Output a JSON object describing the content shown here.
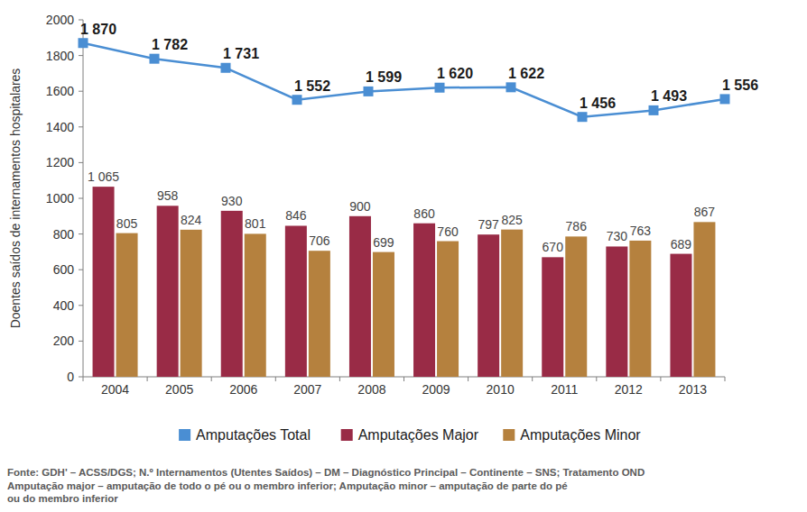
{
  "chart_data": {
    "type": "bar",
    "y_label": "Doentes saídos de internamentos hospitalares",
    "categories": [
      "2004",
      "2005",
      "2006",
      "2007",
      "2008",
      "2009",
      "2010",
      "2011",
      "2012",
      "2013"
    ],
    "series": [
      {
        "name": "Amputações Total",
        "type": "line",
        "marker": "square",
        "color": "#4a8ed3",
        "values": [
          1870,
          1782,
          1731,
          1552,
          1599,
          1620,
          1622,
          1456,
          1493,
          1556
        ],
        "value_labels": [
          "1 870",
          "1 782",
          "1 731",
          "1 552",
          "1 599",
          "1 620",
          "1 622",
          "1 456",
          "1 493",
          "1 556"
        ]
      },
      {
        "name": "Amputações Major",
        "type": "bar",
        "color": "#992b46",
        "values": [
          1065,
          958,
          930,
          846,
          900,
          860,
          797,
          670,
          730,
          689
        ],
        "value_labels": [
          "1 065",
          "958",
          "930",
          "846",
          "900",
          "860",
          "797",
          "670",
          "730",
          "689"
        ]
      },
      {
        "name": "Amputações Minor",
        "type": "bar",
        "color": "#b5813e",
        "values": [
          805,
          824,
          801,
          706,
          699,
          760,
          825,
          786,
          763,
          867
        ]
      }
    ],
    "ylim": [
      0,
      2000
    ],
    "yticks": [
      0,
      200,
      400,
      600,
      800,
      1000,
      1200,
      1400,
      1600,
      1800,
      2000
    ],
    "grid": false,
    "legend": "bottom",
    "data_labels": true,
    "annotations": [
      "Fonte: GDH' – ACSS/DGS; N.º Internamentos (Utentes Saídos) – DM – Diagnóstico Principal – Continente – SNS; Tratamento OND",
      "Amputação major – amputação de todo o pé ou o membro inferior; Amputação minor – amputação de parte do pé",
      "ou do membro inferior"
    ]
  }
}
